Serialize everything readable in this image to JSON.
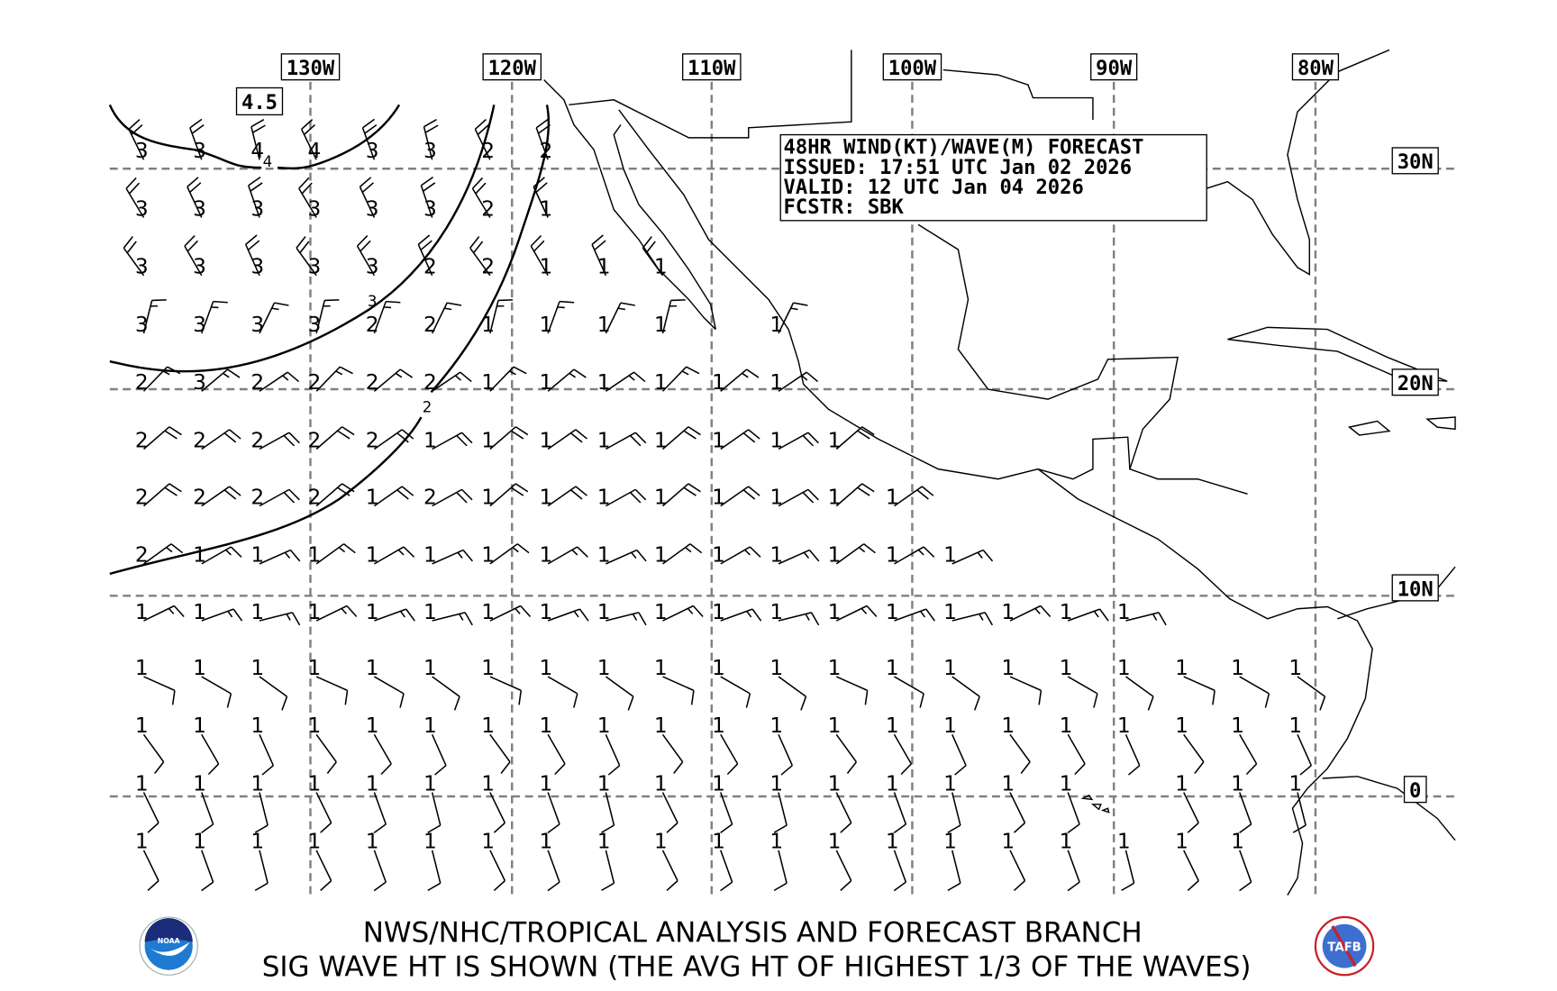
{
  "info_box": {
    "line1": "48HR WIND(KT)/WAVE(M) FORECAST",
    "line2": "ISSUED: 17:51 UTC Jan 02 2026",
    "line3": "VALID: 12 UTC Jan 04 2026",
    "line4": "FCSTR: SBK"
  },
  "longitude_labels": [
    "130W",
    "120W",
    "110W",
    "100W",
    "90W",
    "80W"
  ],
  "latitude_labels": [
    "30N",
    "20N",
    "10N",
    "0"
  ],
  "contour_labels": {
    "max_box": "4.5",
    "c4": "4",
    "c3": "3",
    "c2": "2"
  },
  "wave_heights_m": [
    [
      "3",
      "3",
      "4",
      "4",
      "3",
      "3",
      "2",
      "2"
    ],
    [
      "3",
      "3",
      "3",
      "3",
      "3",
      "3",
      "2",
      "1"
    ],
    [
      "3",
      "3",
      "3",
      "3",
      "3",
      "2",
      "2",
      "1",
      "1",
      "1"
    ],
    [
      "3",
      "3",
      "3",
      "3",
      "2",
      "2",
      "1",
      "1",
      "1",
      "1",
      "",
      "1"
    ],
    [
      "2",
      "3",
      "2",
      "2",
      "2",
      "2",
      "1",
      "1",
      "1",
      "1",
      "1",
      "1"
    ],
    [
      "2",
      "2",
      "2",
      "2",
      "2",
      "1",
      "1",
      "1",
      "1",
      "1",
      "1",
      "1",
      "1"
    ],
    [
      "2",
      "2",
      "2",
      "2",
      "1",
      "2",
      "1",
      "1",
      "1",
      "1",
      "1",
      "1",
      "1",
      "1"
    ],
    [
      "2",
      "1",
      "1",
      "1",
      "1",
      "1",
      "1",
      "1",
      "1",
      "1",
      "1",
      "1",
      "1",
      "1",
      "1"
    ],
    [
      "1",
      "1",
      "1",
      "1",
      "1",
      "1",
      "1",
      "1",
      "1",
      "1",
      "1",
      "1",
      "1",
      "1",
      "1",
      "1",
      "1",
      "1"
    ],
    [
      "1",
      "1",
      "1",
      "1",
      "1",
      "1",
      "1",
      "1",
      "1",
      "1",
      "1",
      "1",
      "1",
      "1",
      "1",
      "1",
      "1",
      "1",
      "1",
      "1",
      "1"
    ],
    [
      "1",
      "1",
      "1",
      "1",
      "1",
      "1",
      "1",
      "1",
      "1",
      "1",
      "1",
      "1",
      "1",
      "1",
      "1",
      "1",
      "1",
      "1",
      "1",
      "1",
      "1"
    ],
    [
      "1",
      "1",
      "1",
      "1",
      "1",
      "1",
      "1",
      "1",
      "1",
      "1",
      "1",
      "1",
      "1",
      "1",
      "1",
      "1",
      "1",
      "",
      "1",
      "1",
      "1"
    ],
    [
      "1",
      "1",
      "1",
      "1",
      "1",
      "1",
      "1",
      "1",
      "1",
      "1",
      "1",
      "1",
      "1",
      "1",
      "1",
      "1",
      "1",
      "1",
      "1",
      "1"
    ]
  ],
  "wind_rows_approx": [
    {
      "dir_deg": 340,
      "speed_kt": 20
    },
    {
      "dir_deg": 335,
      "speed_kt": 20
    },
    {
      "dir_deg": 330,
      "speed_kt": 20
    },
    {
      "dir_deg": 20,
      "speed_kt": 15
    },
    {
      "dir_deg": 50,
      "speed_kt": 15
    },
    {
      "dir_deg": 55,
      "speed_kt": 20
    },
    {
      "dir_deg": 55,
      "speed_kt": 20
    },
    {
      "dir_deg": 60,
      "speed_kt": 15
    },
    {
      "dir_deg": 70,
      "speed_kt": 15
    },
    {
      "dir_deg": 120,
      "speed_kt": 10
    },
    {
      "dir_deg": 150,
      "speed_kt": 10
    },
    {
      "dir_deg": 160,
      "speed_kt": 10
    },
    {
      "dir_deg": 160,
      "speed_kt": 10
    }
  ],
  "footer": {
    "line1": "NWS/NHC/TROPICAL ANALYSIS AND FORECAST BRANCH",
    "line2": "SIG WAVE HT IS SHOWN (THE AVG HT OF HIGHEST 1/3 OF THE WAVES)",
    "noaa_logo_text": "NOAA",
    "tafb_logo_text": "TAFB"
  },
  "colors": {
    "grid": "#808080",
    "noaa_blue": "#1f7ad1",
    "noaa_navy": "#1b2d7a",
    "tafb_red": "#c8202a"
  }
}
